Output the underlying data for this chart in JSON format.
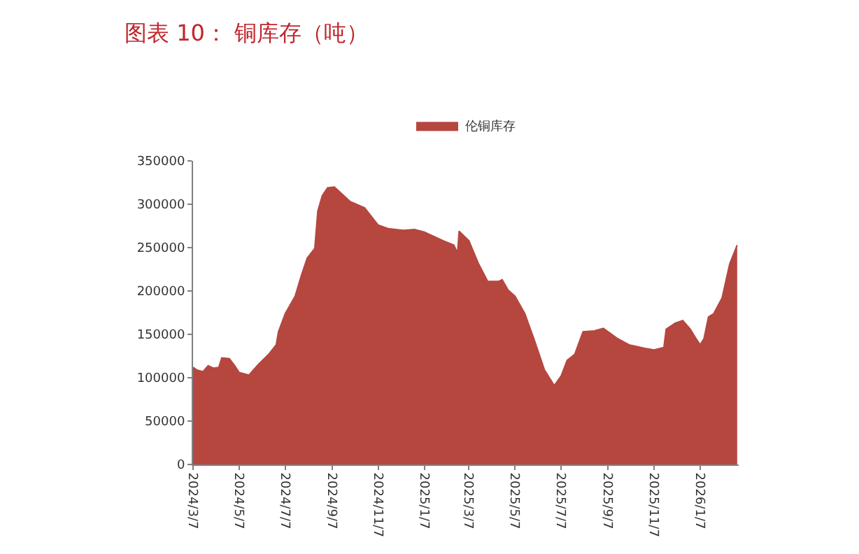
{
  "chart_data": {
    "type": "area",
    "title": "图表 10： 铜库存（吨）",
    "x": [
      "2024-03-07",
      "2024-03-12",
      "2024-03-20",
      "2024-03-27",
      "2024-04-03",
      "2024-04-10",
      "2024-04-14",
      "2024-04-24",
      "2024-05-01",
      "2024-05-07",
      "2024-05-20",
      "2024-06-01",
      "2024-06-15",
      "2024-06-25",
      "2024-06-28",
      "2024-07-07",
      "2024-07-20",
      "2024-07-28",
      "2024-08-05",
      "2024-08-15",
      "2024-08-19",
      "2024-08-25",
      "2024-09-01",
      "2024-09-10",
      "2024-09-20",
      "2024-10-01",
      "2024-10-20",
      "2024-11-07",
      "2024-11-20",
      "2024-12-10",
      "2024-12-25",
      "2025-01-07",
      "2025-02-01",
      "2025-02-15",
      "2025-02-20",
      "2025-02-22",
      "2025-03-07",
      "2025-03-20",
      "2025-04-01",
      "2025-04-15",
      "2025-04-20",
      "2025-04-28",
      "2025-05-07",
      "2025-05-20",
      "2025-06-01",
      "2025-06-15",
      "2025-06-28",
      "2025-07-07",
      "2025-07-15",
      "2025-07-25",
      "2025-08-05",
      "2025-08-20",
      "2025-09-01",
      "2025-09-20",
      "2025-10-05",
      "2025-10-25",
      "2025-11-07",
      "2025-11-20",
      "2025-11-23",
      "2025-12-05",
      "2025-12-15",
      "2025-12-25",
      "2026-01-01",
      "2026-01-07",
      "2026-01-12",
      "2026-01-18",
      "2026-01-25",
      "2026-02-05",
      "2026-02-15",
      "2026-02-25"
    ],
    "series": [
      {
        "name": "伦铜库存",
        "color": "#b5473f",
        "values": [
          112000,
          109000,
          107000,
          114000,
          111000,
          112000,
          123000,
          122000,
          114000,
          106000,
          103000,
          115000,
          127000,
          138000,
          153000,
          174000,
          194000,
          217000,
          238000,
          249000,
          292000,
          310000,
          319000,
          320000,
          312000,
          303000,
          296000,
          276000,
          272000,
          270000,
          271000,
          268000,
          258000,
          253000,
          244000,
          269000,
          258000,
          231000,
          211000,
          211000,
          213000,
          201000,
          194000,
          174000,
          145000,
          109000,
          91000,
          102000,
          120000,
          127000,
          153000,
          154000,
          157000,
          145000,
          138000,
          134000,
          132000,
          135000,
          156000,
          163000,
          166000,
          156000,
          146000,
          138000,
          145000,
          170000,
          174000,
          192000,
          231000,
          253000
        ]
      }
    ],
    "xlim": [
      "2024-03-07",
      "2026-02-27"
    ],
    "xticks": [
      {
        "value": "2024-03-07",
        "label": "2024/3/7"
      },
      {
        "value": "2024-05-07",
        "label": "2024/5/7"
      },
      {
        "value": "2024-07-07",
        "label": "2024/7/7"
      },
      {
        "value": "2024-09-07",
        "label": "2024/9/7"
      },
      {
        "value": "2024-11-07",
        "label": "2024/11/7"
      },
      {
        "value": "2025-01-07",
        "label": "2025/1/7"
      },
      {
        "value": "2025-03-07",
        "label": "2025/3/7"
      },
      {
        "value": "2025-05-07",
        "label": "2025/5/7"
      },
      {
        "value": "2025-07-07",
        "label": "2025/7/7"
      },
      {
        "value": "2025-09-07",
        "label": "2025/9/7"
      },
      {
        "value": "2025-11-07",
        "label": "2025/11/7"
      },
      {
        "value": "2026-01-07",
        "label": "2026/1/7"
      }
    ],
    "ylim": [
      0,
      350000
    ],
    "yticks": [
      0,
      50000,
      100000,
      150000,
      200000,
      250000,
      300000,
      350000
    ],
    "legend": "top"
  }
}
